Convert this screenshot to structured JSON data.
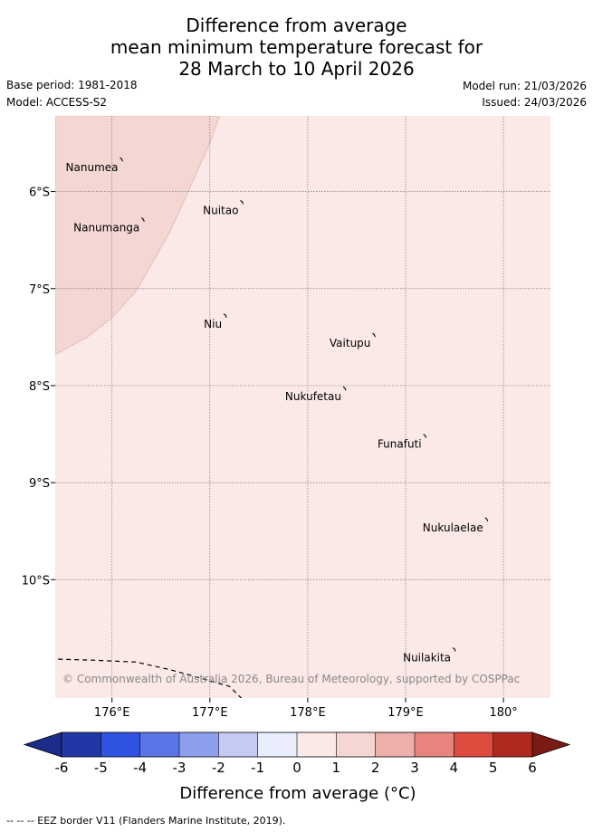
{
  "title": {
    "line1": "Difference from average",
    "line2": "mean minimum temperature forecast for",
    "line3": "28 March to 10 April 2026"
  },
  "meta": {
    "base_period": "Base period: 1981-2018",
    "model": "Model: ACCESS-S2",
    "model_run": "Model run: 21/03/2026",
    "issued": "Issued: 24/03/2026"
  },
  "map": {
    "lon_range": [
      175.42,
      180.48
    ],
    "lat_range": [
      -11.22,
      -5.22
    ],
    "lon_ticks": [
      176,
      177,
      178,
      179,
      180
    ],
    "lon_tick_labels": [
      "176°E",
      "177°E",
      "178°E",
      "179°E",
      "180°"
    ],
    "lat_ticks": [
      -6,
      -7,
      -8,
      -9,
      -10
    ],
    "lat_tick_labels": [
      "6°S",
      "7°S",
      "8°S",
      "9°S",
      "10°S"
    ],
    "background_color": "#fbe9e8",
    "warmer_region_color": "#f4d6d3",
    "warmer_region_range": "1 to 2",
    "background_range": "0 to 1",
    "warmer_region_boundary": [
      [
        175.42,
        -7.68
      ],
      [
        175.75,
        -7.5
      ],
      [
        176.0,
        -7.3
      ],
      [
        176.25,
        -7.02
      ],
      [
        176.6,
        -6.4
      ],
      [
        177.0,
        -5.5
      ],
      [
        177.1,
        -5.22
      ],
      [
        175.42,
        -5.22
      ]
    ],
    "eez_border": [
      [
        175.45,
        -10.82
      ],
      [
        175.8,
        -10.83
      ],
      [
        176.25,
        -10.85
      ],
      [
        176.6,
        -10.93
      ],
      [
        176.85,
        -11.0
      ],
      [
        177.2,
        -11.1
      ],
      [
        177.5,
        -11.4
      ],
      [
        177.75,
        -11.6
      ],
      [
        178.0,
        -11.87
      ]
    ],
    "islands": [
      {
        "name": "Nanumea",
        "lon": 176.1,
        "lat": -5.67
      },
      {
        "name": "Nanumanga",
        "lon": 176.32,
        "lat": -6.29
      },
      {
        "name": "Nuitao",
        "lon": 177.33,
        "lat": -6.11
      },
      {
        "name": "Niu",
        "lon": 177.16,
        "lat": -7.28
      },
      {
        "name": "Vaitupu",
        "lon": 178.68,
        "lat": -7.48
      },
      {
        "name": "Nukufetau",
        "lon": 178.38,
        "lat": -8.03
      },
      {
        "name": "Funafuti",
        "lon": 179.2,
        "lat": -8.52
      },
      {
        "name": "Nukulaelae",
        "lon": 179.83,
        "lat": -9.38
      },
      {
        "name": "Nuilakita",
        "lon": 179.5,
        "lat": -10.72
      }
    ],
    "copyright": "© Commonwealth of Australia 2026, Bureau of Meteorology, supported by COSPPac"
  },
  "colorbar": {
    "ticks": [
      "-6",
      "-5",
      "-4",
      "-3",
      "-2",
      "-1",
      "0",
      "1",
      "2",
      "3",
      "4",
      "5",
      "6"
    ],
    "colors": [
      "#2336a6",
      "#2f52e0",
      "#5a76e6",
      "#8d9eec",
      "#c3cbf5",
      "#eaedfc",
      "#fbe9e8",
      "#f4d6d3",
      "#eeaeaa",
      "#e8847f",
      "#dd4c3e",
      "#b02820"
    ],
    "under_color": "#1c2c8a",
    "over_color": "#7b1b16",
    "label": "Difference from average (°C)"
  },
  "footer": {
    "legend_text": "-- -- -- EEZ border V11 (Flanders Marine Institute, 2019)."
  }
}
